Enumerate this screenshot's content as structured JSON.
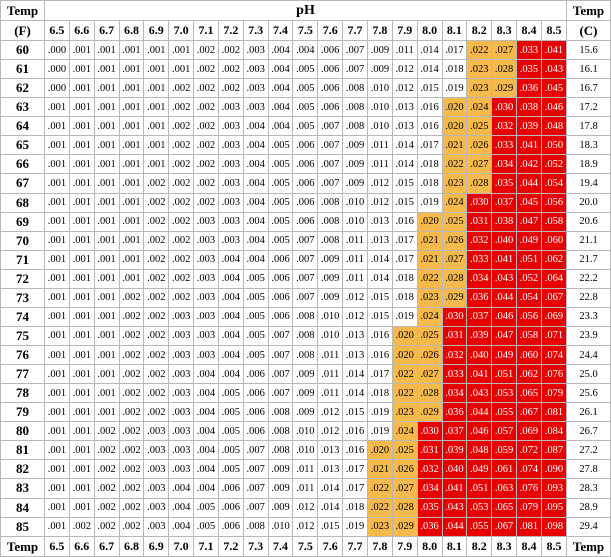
{
  "table": {
    "header": {
      "left": [
        "Temp",
        "(F)"
      ],
      "title": "pH",
      "right": [
        "Temp",
        "(C)"
      ]
    },
    "footer": {
      "left": "Temp",
      "right": "Temp"
    },
    "ph": [
      "6.5",
      "6.6",
      "6.7",
      "6.8",
      "6.9",
      "7.0",
      "7.1",
      "7.2",
      "7.3",
      "7.4",
      "7.5",
      "7.6",
      "7.7",
      "7.8",
      "7.9",
      "8.0",
      "8.1",
      "8.2",
      "8.3",
      "8.4",
      "8.5"
    ],
    "rows": [
      {
        "f": "60",
        "c": "15.6",
        "values": [
          ".000",
          ".001",
          ".001",
          ".001",
          ".001",
          ".001",
          ".002",
          ".002",
          ".003",
          ".004",
          ".004",
          ".006",
          ".007",
          ".009",
          ".011",
          ".014",
          ".017",
          ".022",
          ".027",
          ".033",
          ".041"
        ]
      },
      {
        "f": "61",
        "c": "16.1",
        "values": [
          ".000",
          ".001",
          ".001",
          ".001",
          ".001",
          ".001",
          ".002",
          ".002",
          ".003",
          ".004",
          ".005",
          ".006",
          ".007",
          ".009",
          ".012",
          ".014",
          ".018",
          ".023",
          ".028",
          ".035",
          ".043"
        ]
      },
      {
        "f": "62",
        "c": "16.7",
        "values": [
          ".000",
          ".001",
          ".001",
          ".001",
          ".001",
          ".002",
          ".002",
          ".002",
          ".003",
          ".004",
          ".005",
          ".006",
          ".008",
          ".010",
          ".012",
          ".015",
          ".019",
          ".023",
          ".029",
          ".036",
          ".045"
        ]
      },
      {
        "f": "63",
        "c": "17.2",
        "values": [
          ".001",
          ".001",
          ".001",
          ".001",
          ".001",
          ".002",
          ".002",
          ".003",
          ".003",
          ".004",
          ".005",
          ".006",
          ".008",
          ".010",
          ".013",
          ".016",
          ".020",
          ".024",
          ".030",
          ".038",
          ".046"
        ]
      },
      {
        "f": "64",
        "c": "17.8",
        "values": [
          ".001",
          ".001",
          ".001",
          ".001",
          ".001",
          ".002",
          ".002",
          ".003",
          ".004",
          ".004",
          ".005",
          ".007",
          ".008",
          ".010",
          ".013",
          ".016",
          ".020",
          ".025",
          ".032",
          ".039",
          ".048"
        ]
      },
      {
        "f": "65",
        "c": "18.3",
        "values": [
          ".001",
          ".001",
          ".001",
          ".001",
          ".001",
          ".002",
          ".002",
          ".003",
          ".004",
          ".005",
          ".006",
          ".007",
          ".009",
          ".011",
          ".014",
          ".017",
          ".021",
          ".026",
          ".033",
          ".041",
          ".050"
        ]
      },
      {
        "f": "66",
        "c": "18.9",
        "values": [
          ".001",
          ".001",
          ".001",
          ".001",
          ".001",
          ".002",
          ".002",
          ".003",
          ".004",
          ".005",
          ".006",
          ".007",
          ".009",
          ".011",
          ".014",
          ".018",
          ".022",
          ".027",
          ".034",
          ".042",
          ".052"
        ]
      },
      {
        "f": "67",
        "c": "19.4",
        "values": [
          ".001",
          ".001",
          ".001",
          ".001",
          ".002",
          ".002",
          ".002",
          ".003",
          ".004",
          ".005",
          ".006",
          ".007",
          ".009",
          ".012",
          ".015",
          ".018",
          ".023",
          ".028",
          ".035",
          ".044",
          ".054"
        ]
      },
      {
        "f": "68",
        "c": "20.0",
        "values": [
          ".001",
          ".001",
          ".001",
          ".001",
          ".002",
          ".002",
          ".002",
          ".003",
          ".004",
          ".005",
          ".006",
          ".008",
          ".010",
          ".012",
          ".015",
          ".019",
          ".024",
          ".030",
          ".037",
          ".045",
          ".056"
        ]
      },
      {
        "f": "69",
        "c": "20.6",
        "values": [
          ".001",
          ".001",
          ".001",
          ".001",
          ".002",
          ".002",
          ".003",
          ".003",
          ".004",
          ".005",
          ".006",
          ".008",
          ".010",
          ".013",
          ".016",
          ".020",
          ".025",
          ".031",
          ".038",
          ".047",
          ".058"
        ]
      },
      {
        "f": "70",
        "c": "21.1",
        "values": [
          ".001",
          ".001",
          ".001",
          ".001",
          ".002",
          ".002",
          ".003",
          ".003",
          ".004",
          ".005",
          ".007",
          ".008",
          ".011",
          ".013",
          ".017",
          ".021",
          ".026",
          ".032",
          ".040",
          ".049",
          ".060"
        ]
      },
      {
        "f": "71",
        "c": "21.7",
        "values": [
          ".001",
          ".001",
          ".001",
          ".001",
          ".002",
          ".002",
          ".003",
          ".004",
          ".004",
          ".006",
          ".007",
          ".009",
          ".011",
          ".014",
          ".017",
          ".021",
          ".027",
          ".033",
          ".041",
          ".051",
          ".062"
        ]
      },
      {
        "f": "72",
        "c": "22.2",
        "values": [
          ".001",
          ".001",
          ".001",
          ".001",
          ".002",
          ".002",
          ".003",
          ".004",
          ".005",
          ".006",
          ".007",
          ".009",
          ".011",
          ".014",
          ".018",
          ".022",
          ".028",
          ".034",
          ".043",
          ".052",
          ".064"
        ]
      },
      {
        "f": "73",
        "c": "22.8",
        "values": [
          ".001",
          ".001",
          ".001",
          ".002",
          ".002",
          ".002",
          ".003",
          ".004",
          ".005",
          ".006",
          ".007",
          ".009",
          ".012",
          ".015",
          ".018",
          ".023",
          ".029",
          ".036",
          ".044",
          ".054",
          ".067"
        ]
      },
      {
        "f": "74",
        "c": "23.3",
        "values": [
          ".001",
          ".001",
          ".001",
          ".002",
          ".002",
          ".003",
          ".003",
          ".004",
          ".005",
          ".006",
          ".008",
          ".010",
          ".012",
          ".015",
          ".019",
          ".024",
          ".030",
          ".037",
          ".046",
          ".056",
          ".069"
        ]
      },
      {
        "f": "75",
        "c": "23.9",
        "values": [
          ".001",
          ".001",
          ".001",
          ".002",
          ".002",
          ".003",
          ".003",
          ".004",
          ".005",
          ".007",
          ".008",
          ".010",
          ".013",
          ".016",
          ".020",
          ".025",
          ".031",
          ".039",
          ".047",
          ".058",
          ".071"
        ]
      },
      {
        "f": "76",
        "c": "24.4",
        "values": [
          ".001",
          ".001",
          ".001",
          ".002",
          ".002",
          ".003",
          ".003",
          ".004",
          ".005",
          ".007",
          ".008",
          ".011",
          ".013",
          ".016",
          ".020",
          ".026",
          ".032",
          ".040",
          ".049",
          ".060",
          ".074"
        ]
      },
      {
        "f": "77",
        "c": "25.0",
        "values": [
          ".001",
          ".001",
          ".001",
          ".002",
          ".002",
          ".003",
          ".004",
          ".004",
          ".006",
          ".007",
          ".009",
          ".011",
          ".014",
          ".017",
          ".022",
          ".027",
          ".033",
          ".041",
          ".051",
          ".062",
          ".076"
        ]
      },
      {
        "f": "78",
        "c": "25.6",
        "values": [
          ".001",
          ".001",
          ".001",
          ".002",
          ".002",
          ".003",
          ".004",
          ".005",
          ".006",
          ".007",
          ".009",
          ".011",
          ".014",
          ".018",
          ".022",
          ".028",
          ".034",
          ".043",
          ".053",
          ".065",
          ".079"
        ]
      },
      {
        "f": "79",
        "c": "26.1",
        "values": [
          ".001",
          ".001",
          ".001",
          ".002",
          ".002",
          ".003",
          ".004",
          ".005",
          ".006",
          ".008",
          ".009",
          ".012",
          ".015",
          ".019",
          ".023",
          ".029",
          ".036",
          ".044",
          ".055",
          ".067",
          ".081"
        ]
      },
      {
        "f": "80",
        "c": "26.7",
        "values": [
          ".001",
          ".001",
          ".002",
          ".002",
          ".003",
          ".003",
          ".004",
          ".005",
          ".006",
          ".008",
          ".010",
          ".012",
          ".016",
          ".019",
          ".024",
          ".030",
          ".037",
          ".046",
          ".057",
          ".069",
          ".084"
        ]
      },
      {
        "f": "81",
        "c": "27.2",
        "values": [
          ".001",
          ".001",
          ".002",
          ".002",
          ".003",
          ".003",
          ".004",
          ".005",
          ".007",
          ".008",
          ".010",
          ".013",
          ".016",
          ".020",
          ".025",
          ".031",
          ".039",
          ".048",
          ".059",
          ".072",
          ".087"
        ]
      },
      {
        "f": "82",
        "c": "27.8",
        "values": [
          ".001",
          ".001",
          ".002",
          ".002",
          ".003",
          ".003",
          ".004",
          ".005",
          ".007",
          ".009",
          ".011",
          ".013",
          ".017",
          ".021",
          ".026",
          ".032",
          ".040",
          ".049",
          ".061",
          ".074",
          ".090"
        ]
      },
      {
        "f": "83",
        "c": "28.3",
        "values": [
          ".001",
          ".001",
          ".002",
          ".002",
          ".003",
          ".004",
          ".004",
          ".006",
          ".007",
          ".009",
          ".011",
          ".014",
          ".017",
          ".022",
          ".027",
          ".034",
          ".041",
          ".051",
          ".063",
          ".076",
          ".093"
        ]
      },
      {
        "f": "84",
        "c": "28.9",
        "values": [
          ".001",
          ".001",
          ".002",
          ".002",
          ".003",
          ".004",
          ".005",
          ".006",
          ".007",
          ".009",
          ".012",
          ".014",
          ".018",
          ".022",
          ".028",
          ".035",
          ".043",
          ".053",
          ".065",
          ".079",
          ".095"
        ]
      },
      {
        "f": "85",
        "c": "29.4",
        "values": [
          ".001",
          ".002",
          ".002",
          ".002",
          ".003",
          ".004",
          ".005",
          ".006",
          ".008",
          ".010",
          ".012",
          ".015",
          ".019",
          ".023",
          ".029",
          ".036",
          ".044",
          ".055",
          ".067",
          ".081",
          ".098"
        ]
      }
    ]
  }
}
